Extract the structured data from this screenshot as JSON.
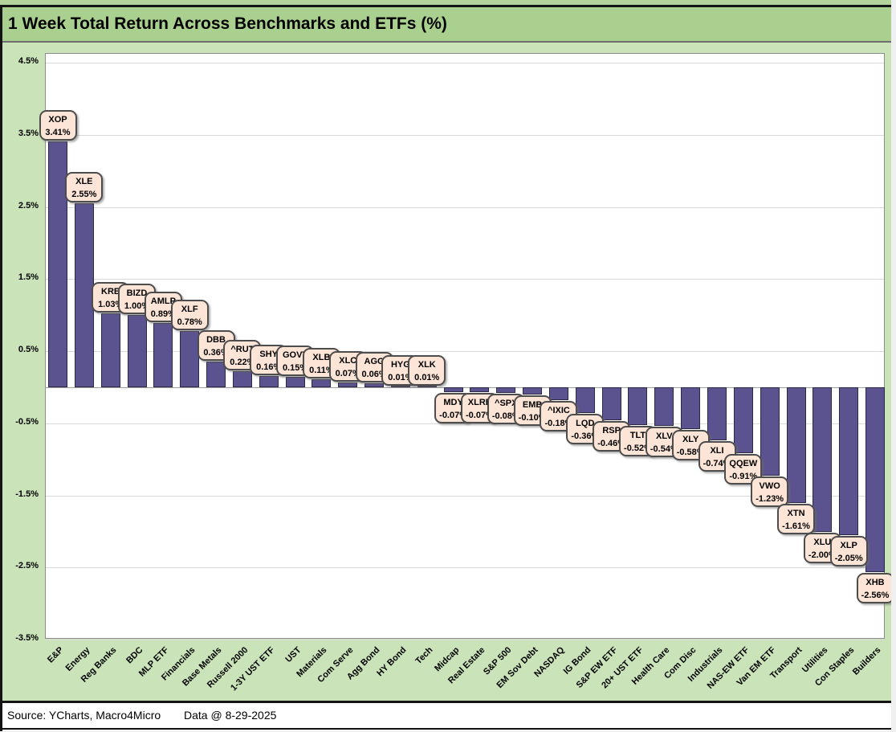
{
  "footer": {
    "source": "Source: YCharts, Macro4Micro",
    "data_date": "Data @ 8-29-2025"
  },
  "chart_data": {
    "type": "bar",
    "title": "1 Week Total Return Across Benchmarks and ETFs (%)",
    "xlabel": "",
    "ylabel": "",
    "ylim": [
      -3.5,
      4.5
    ],
    "grid": true,
    "legend_position": "none",
    "y_ticks": [
      4.5,
      3.5,
      2.5,
      1.5,
      0.5,
      -0.5,
      -1.5,
      -2.5,
      -3.5
    ],
    "y_tick_labels": [
      "4.5%",
      "3.5%",
      "2.5%",
      "1.5%",
      "0.5%",
      "-0.5%",
      "-1.5%",
      "-2.5%",
      "-3.5%"
    ],
    "series_name": "1 Week Total Return (%)",
    "bars": [
      {
        "category": "E&P",
        "ticker": "XOP",
        "value": 3.41,
        "label": "3.41%"
      },
      {
        "category": "Energy",
        "ticker": "XLE",
        "value": 2.55,
        "label": "2.55%"
      },
      {
        "category": "Reg Banks",
        "ticker": "KRE",
        "value": 1.03,
        "label": "1.03%"
      },
      {
        "category": "BDC",
        "ticker": "BIZD",
        "value": 1.0,
        "label": "1.00%"
      },
      {
        "category": "MLP ETF",
        "ticker": "AMLP",
        "value": 0.89,
        "label": "0.89%"
      },
      {
        "category": "Financials",
        "ticker": "XLF",
        "value": 0.78,
        "label": "0.78%"
      },
      {
        "category": "Base Metals",
        "ticker": "DBB",
        "value": 0.36,
        "label": "0.36%"
      },
      {
        "category": "Russell 2000",
        "ticker": "^RUT",
        "value": 0.22,
        "label": "0.22%"
      },
      {
        "category": "1-3Y UST ETF",
        "ticker": "SHY",
        "value": 0.16,
        "label": "0.16%"
      },
      {
        "category": "UST",
        "ticker": "GOVT",
        "value": 0.15,
        "label": "0.15%"
      },
      {
        "category": "Materials",
        "ticker": "XLB",
        "value": 0.11,
        "label": "0.11%"
      },
      {
        "category": "Com Serve",
        "ticker": "XLC",
        "value": 0.07,
        "label": "0.07%"
      },
      {
        "category": "Agg Bond",
        "ticker": "AGG",
        "value": 0.06,
        "label": "0.06%"
      },
      {
        "category": "HY Bond",
        "ticker": "HYG",
        "value": 0.01,
        "label": "0.01%"
      },
      {
        "category": "Tech",
        "ticker": "XLK",
        "value": 0.01,
        "label": "0.01%"
      },
      {
        "category": "Midcap",
        "ticker": "MDY",
        "value": -0.07,
        "label": "-0.07%"
      },
      {
        "category": "Real Estate",
        "ticker": "XLRE",
        "value": -0.07,
        "label": "-0.07%"
      },
      {
        "category": "S&P 500",
        "ticker": "^SPX",
        "value": -0.08,
        "label": "-0.08%"
      },
      {
        "category": "EM Sov Debt",
        "ticker": "EMB",
        "value": -0.1,
        "label": "-0.10%"
      },
      {
        "category": "NASDAQ",
        "ticker": "^IXIC",
        "value": -0.18,
        "label": "-0.18%"
      },
      {
        "category": "IG Bond",
        "ticker": "LQD",
        "value": -0.36,
        "label": "-0.36%"
      },
      {
        "category": "S&P EW ETF",
        "ticker": "RSP",
        "value": -0.46,
        "label": "-0.46%"
      },
      {
        "category": "20+ UST ETF",
        "ticker": "TLT",
        "value": -0.52,
        "label": "-0.52%"
      },
      {
        "category": "Health Care",
        "ticker": "XLV",
        "value": -0.54,
        "label": "-0.54%"
      },
      {
        "category": "Com Disc",
        "ticker": "XLY",
        "value": -0.58,
        "label": "-0.58%"
      },
      {
        "category": "Industrials",
        "ticker": "XLI",
        "value": -0.74,
        "label": "-0.74%"
      },
      {
        "category": "NAS-EW ETF",
        "ticker": "QQEW",
        "value": -0.91,
        "label": "-0.91%"
      },
      {
        "category": "Van EM ETF",
        "ticker": "VWO",
        "value": -1.23,
        "label": "-1.23%"
      },
      {
        "category": "Transport",
        "ticker": "XTN",
        "value": -1.61,
        "label": "-1.61%"
      },
      {
        "category": "Utilities",
        "ticker": "XLU",
        "value": -2.0,
        "label": "-2.00%"
      },
      {
        "category": "Con Staples",
        "ticker": "XLP",
        "value": -2.05,
        "label": "-2.05%"
      },
      {
        "category": "Builders",
        "ticker": "XHB",
        "value": -2.56,
        "label": "-2.56%"
      }
    ]
  },
  "colors": {
    "bar_fill": "#5b538f",
    "bar_border": "#2b2846",
    "callout_bg": "#fce4d6",
    "callout_border": "#4d4d4d",
    "title_bg": "#a9d08e",
    "chart_bg": "#cae3b9",
    "plot_bg": "#ffffff",
    "grid_line": "#d9d9d9",
    "zero_line": "#a0a0a0"
  }
}
